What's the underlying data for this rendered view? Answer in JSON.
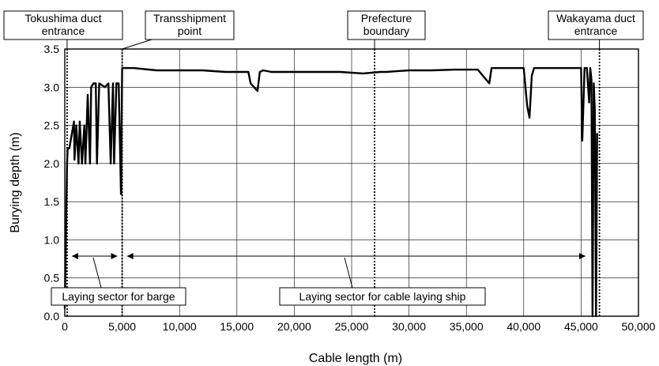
{
  "chart_data": {
    "type": "line",
    "xlabel": "Cable length (m)",
    "ylabel": "Burying depth (m)",
    "xlim": [
      0,
      50000
    ],
    "ylim": [
      0.0,
      3.5
    ],
    "x_ticks": [
      "0",
      "5,000",
      "10,000",
      "15,000",
      "20,000",
      "25,000",
      "30,000",
      "35,000",
      "40,000",
      "45,000",
      "50,000"
    ],
    "y_ticks": [
      "0.0",
      "0.5",
      "1.0",
      "1.5",
      "2.0",
      "2.5",
      "3.0",
      "3.5"
    ],
    "grid": true,
    "series": [
      {
        "x": [
          0,
          200,
          250,
          400,
          800,
          850,
          1000,
          1200,
          1300,
          1500,
          1700,
          1800,
          2000,
          2200,
          2300,
          2500,
          2700,
          2800,
          3000,
          3500,
          3800,
          4000,
          4200,
          4300,
          4500,
          4700,
          4900,
          5000,
          5200,
          6000,
          8000,
          10000,
          12000,
          14000,
          15500,
          16000,
          16200,
          16500,
          16800,
          17000,
          17300,
          18000,
          20000,
          22000,
          24000,
          26000,
          27500,
          28000,
          30000,
          32000,
          34000,
          36000,
          37000,
          37200,
          37500,
          38000,
          40000,
          40300,
          40500,
          40700,
          40900,
          41200,
          42000,
          44000,
          45000,
          45100,
          45300,
          45500,
          45700,
          45800,
          45900,
          46000,
          46100,
          46200,
          46300,
          46400
        ],
        "y": [
          0.1,
          2.0,
          2.2,
          2.2,
          2.55,
          2.05,
          2.5,
          2.0,
          2.55,
          2.0,
          2.5,
          2.0,
          2.9,
          2.0,
          3.0,
          3.05,
          3.05,
          2.0,
          3.05,
          3.0,
          3.05,
          2.0,
          3.05,
          2.0,
          3.05,
          3.05,
          1.6,
          3.25,
          3.25,
          3.25,
          3.22,
          3.22,
          3.22,
          3.2,
          3.2,
          3.2,
          3.05,
          3.0,
          2.95,
          3.2,
          3.22,
          3.2,
          3.2,
          3.2,
          3.2,
          3.18,
          3.2,
          3.2,
          3.22,
          3.22,
          3.23,
          3.23,
          3.05,
          3.25,
          3.25,
          3.25,
          3.25,
          2.75,
          2.6,
          3.15,
          3.25,
          3.25,
          3.25,
          3.25,
          3.25,
          2.3,
          3.25,
          3.25,
          2.8,
          3.25,
          3.1,
          0.0,
          3.05,
          2.7,
          0.0,
          2.4
        ]
      }
    ],
    "vertical_markers": [
      {
        "x": 200,
        "label_lines": [
          "Tokushima duct",
          "entrance"
        ]
      },
      {
        "x": 5000,
        "label_lines": [
          "Transshipment",
          "point"
        ]
      },
      {
        "x": 27000,
        "label_lines": [
          "Prefecture",
          "boundary"
        ]
      },
      {
        "x": 46600,
        "label_lines": [
          "Wakayama duct",
          "entrance"
        ]
      }
    ],
    "sectors": [
      {
        "label": "Laying sector for barge",
        "from": 200,
        "to": 5000
      },
      {
        "label": "Laying sector for cable laying ship",
        "from": 5000,
        "to": 45800
      }
    ]
  }
}
